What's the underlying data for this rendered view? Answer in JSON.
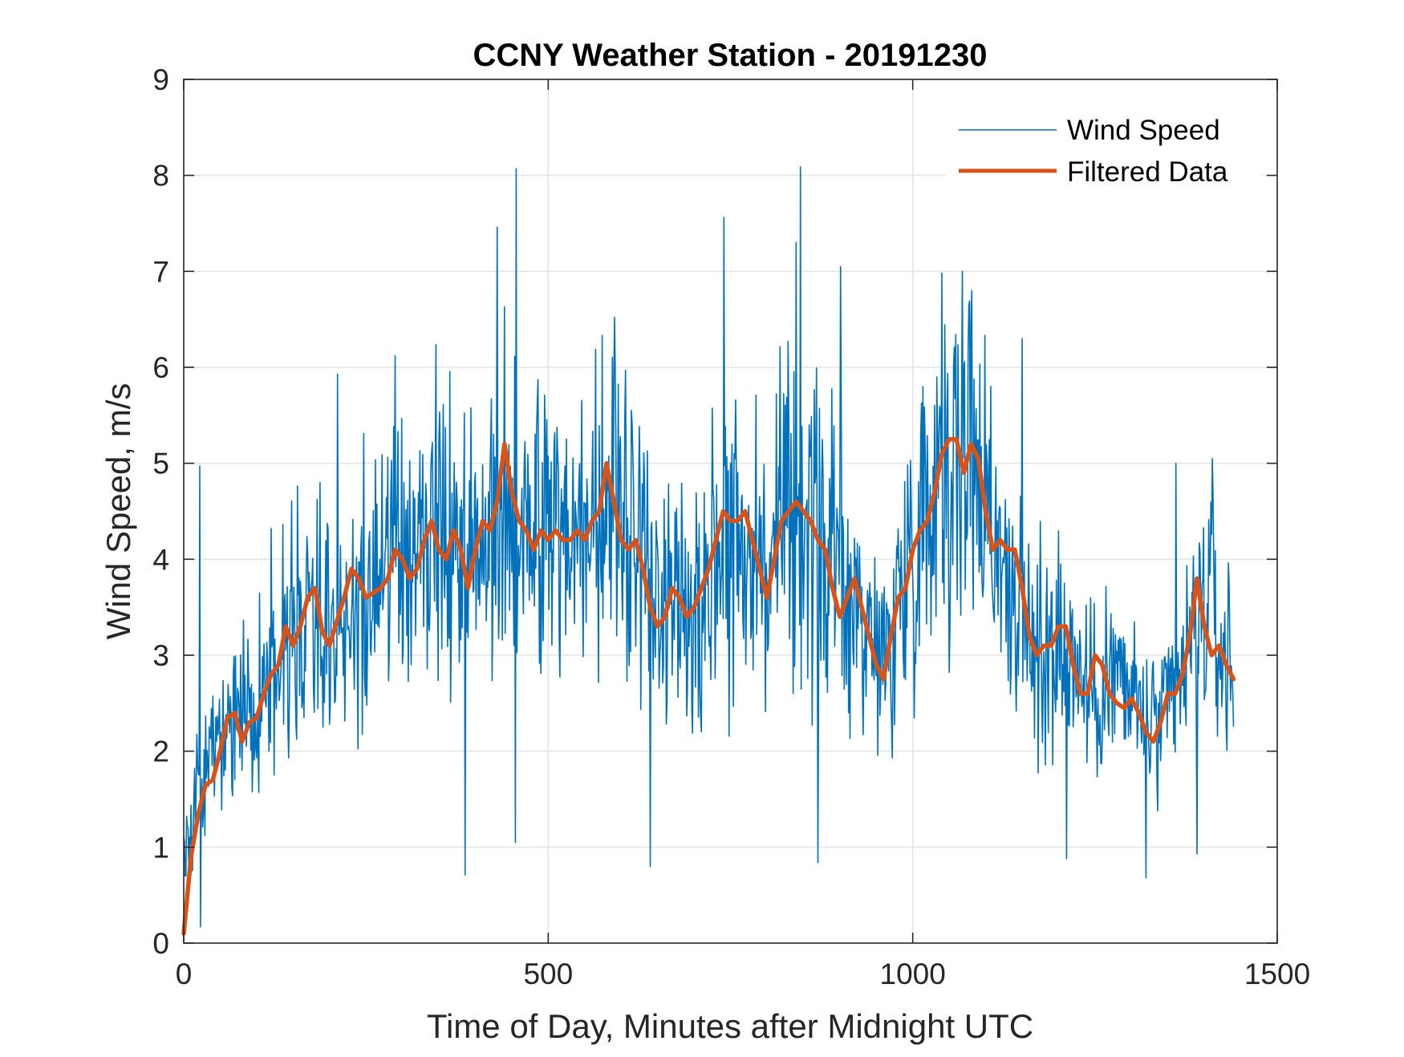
{
  "chart_data": {
    "type": "line",
    "title": "CCNY Weather Station - 20191230",
    "xlabel": "Time of Day, Minutes after Midnight UTC",
    "ylabel": "Wind Speed, m/s",
    "xlim": [
      0,
      1500
    ],
    "ylim": [
      0,
      9
    ],
    "xticks": [
      0,
      500,
      1000,
      1500
    ],
    "yticks": [
      0,
      1,
      2,
      3,
      4,
      5,
      6,
      7,
      8,
      9
    ],
    "grid": true,
    "legend_position": "top-right",
    "series": [
      {
        "name": "Wind Speed",
        "style": "thin",
        "color": "#0072BD",
        "sample_step_minutes": 1,
        "last_minute": 1440,
        "trend_x": [
          0,
          20,
          60,
          100,
          150,
          200,
          250,
          300,
          350,
          400,
          440,
          470,
          520,
          560,
          590,
          620,
          660,
          700,
          750,
          800,
          840,
          880,
          920,
          960,
          1000,
          1040,
          1060,
          1090,
          1120,
          1160,
          1200,
          1240,
          1280,
          1320,
          1340,
          1360,
          1380,
          1400,
          1420,
          1440
        ],
        "trend_y": [
          1.0,
          1.7,
          2.3,
          2.6,
          3.3,
          3.2,
          3.7,
          4.0,
          4.2,
          4.1,
          4.8,
          4.4,
          4.2,
          4.2,
          4.8,
          4.1,
          3.5,
          3.6,
          4.4,
          3.9,
          4.5,
          4.1,
          3.6,
          2.9,
          4.2,
          5.1,
          5.1,
          5.1,
          4.1,
          3.0,
          3.2,
          2.6,
          2.8,
          2.3,
          2.2,
          2.6,
          3.0,
          3.6,
          3.1,
          2.8
        ],
        "spikes": [
          {
            "x": 22,
            "y": 4.97
          },
          {
            "x": 22,
            "y": 0.17
          },
          {
            "x": 120,
            "y": 4.32
          },
          {
            "x": 210,
            "y": 5.93
          },
          {
            "x": 290,
            "y": 6.12
          },
          {
            "x": 385,
            "y": 0.71
          },
          {
            "x": 430,
            "y": 7.46
          },
          {
            "x": 455,
            "y": 8.07
          },
          {
            "x": 455,
            "y": 1.05
          },
          {
            "x": 590,
            "y": 6.52
          },
          {
            "x": 640,
            "y": 0.8
          },
          {
            "x": 740,
            "y": 7.56
          },
          {
            "x": 840,
            "y": 7.3
          },
          {
            "x": 845,
            "y": 8.09
          },
          {
            "x": 870,
            "y": 0.84
          },
          {
            "x": 900,
            "y": 7.05
          },
          {
            "x": 1040,
            "y": 6.98
          },
          {
            "x": 1080,
            "y": 6.8
          },
          {
            "x": 1150,
            "y": 6.3
          },
          {
            "x": 1210,
            "y": 0.88
          },
          {
            "x": 1320,
            "y": 0.68
          },
          {
            "x": 1360,
            "y": 5.0
          },
          {
            "x": 1390,
            "y": 0.93
          },
          {
            "x": 1410,
            "y": 5.05
          }
        ]
      },
      {
        "name": "Filtered Data",
        "style": "thick",
        "color": "#D95319",
        "x": [
          0,
          10,
          20,
          30,
          40,
          50,
          60,
          70,
          80,
          90,
          100,
          110,
          120,
          130,
          140,
          150,
          160,
          170,
          180,
          190,
          200,
          210,
          220,
          230,
          240,
          250,
          260,
          270,
          280,
          290,
          300,
          310,
          320,
          330,
          340,
          350,
          360,
          370,
          380,
          390,
          400,
          410,
          420,
          430,
          440,
          450,
          460,
          470,
          480,
          490,
          500,
          510,
          520,
          530,
          540,
          550,
          560,
          570,
          580,
          590,
          600,
          610,
          620,
          630,
          640,
          650,
          660,
          670,
          680,
          690,
          700,
          710,
          720,
          730,
          740,
          750,
          760,
          770,
          780,
          790,
          800,
          810,
          820,
          830,
          840,
          850,
          860,
          870,
          880,
          890,
          900,
          910,
          920,
          930,
          940,
          950,
          960,
          970,
          980,
          990,
          1000,
          1010,
          1020,
          1030,
          1040,
          1050,
          1060,
          1070,
          1080,
          1090,
          1100,
          1110,
          1120,
          1130,
          1140,
          1150,
          1160,
          1170,
          1180,
          1190,
          1200,
          1210,
          1220,
          1230,
          1240,
          1250,
          1260,
          1270,
          1280,
          1290,
          1300,
          1310,
          1320,
          1330,
          1340,
          1350,
          1360,
          1370,
          1380,
          1390,
          1400,
          1410,
          1420,
          1430,
          1440
        ],
        "y": [
          0.1,
          0.9,
          1.35,
          1.65,
          1.7,
          2.0,
          2.35,
          2.4,
          2.1,
          2.3,
          2.35,
          2.6,
          2.8,
          2.9,
          3.3,
          3.1,
          3.3,
          3.6,
          3.7,
          3.25,
          3.1,
          3.35,
          3.6,
          3.9,
          3.8,
          3.6,
          3.65,
          3.7,
          3.8,
          4.1,
          4.0,
          3.8,
          3.9,
          4.2,
          4.4,
          4.1,
          4.0,
          4.3,
          4.1,
          3.7,
          4.1,
          4.4,
          4.3,
          4.6,
          5.2,
          4.7,
          4.4,
          4.3,
          4.1,
          4.3,
          4.2,
          4.3,
          4.2,
          4.2,
          4.3,
          4.2,
          4.4,
          4.5,
          5.0,
          4.6,
          4.2,
          4.1,
          4.2,
          3.9,
          3.5,
          3.3,
          3.4,
          3.7,
          3.6,
          3.4,
          3.5,
          3.7,
          3.9,
          4.2,
          4.5,
          4.4,
          4.4,
          4.5,
          4.2,
          3.9,
          3.6,
          4.0,
          4.4,
          4.5,
          4.6,
          4.5,
          4.4,
          4.2,
          4.1,
          3.7,
          3.4,
          3.6,
          3.8,
          3.5,
          3.2,
          2.9,
          2.75,
          3.2,
          3.6,
          3.7,
          4.1,
          4.3,
          4.4,
          4.7,
          5.1,
          5.25,
          5.25,
          4.9,
          5.2,
          5.05,
          4.5,
          4.1,
          4.2,
          4.1,
          4.1,
          3.7,
          3.2,
          3.0,
          3.1,
          3.1,
          3.3,
          3.3,
          2.9,
          2.6,
          2.6,
          3.0,
          2.9,
          2.6,
          2.5,
          2.45,
          2.55,
          2.4,
          2.2,
          2.1,
          2.3,
          2.6,
          2.6,
          2.8,
          3.2,
          3.8,
          3.3,
          3.0,
          3.1,
          2.9,
          2.75
        ]
      }
    ]
  }
}
